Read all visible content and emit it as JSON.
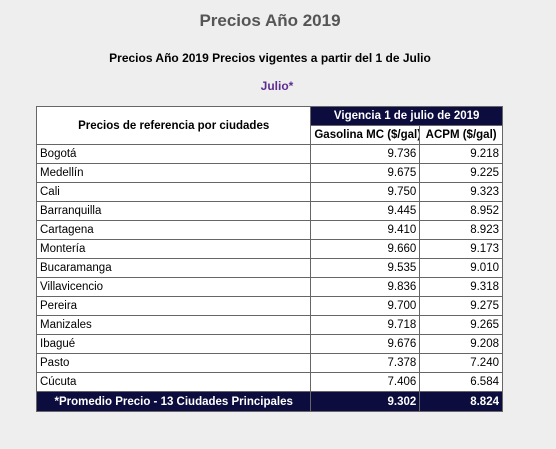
{
  "page": {
    "title": "Precios Año 2019",
    "subtitle": "Precios Año 2019 Precios vigentes a partir del 1 de Julio",
    "month_link": "Julio*"
  },
  "table": {
    "ref_header": "Precios de referencia por ciudades",
    "vigencia_header": "Vigencia 1 de julio de 2019",
    "gas_header": "Gasolina MC ($/gal)",
    "acpm_header": "ACPM ($/gal)",
    "rows": [
      {
        "city": "Bogotá",
        "gas": "9.736",
        "acpm": "9.218"
      },
      {
        "city": "Medellín",
        "gas": "9.675",
        "acpm": "9.225"
      },
      {
        "city": "Cali",
        "gas": "9.750",
        "acpm": "9.323"
      },
      {
        "city": "Barranquilla",
        "gas": "9.445",
        "acpm": "8.952"
      },
      {
        "city": "Cartagena",
        "gas": "9.410",
        "acpm": "8.923"
      },
      {
        "city": "Montería",
        "gas": "9.660",
        "acpm": "9.173"
      },
      {
        "city": "Bucaramanga",
        "gas": "9.535",
        "acpm": "9.010"
      },
      {
        "city": "Villavicencio",
        "gas": "9.836",
        "acpm": "9.318"
      },
      {
        "city": "Pereira",
        "gas": "9.700",
        "acpm": "9.275"
      },
      {
        "city": "Manizales",
        "gas": "9.718",
        "acpm": "9.265"
      },
      {
        "city": "Ibagué",
        "gas": "9.676",
        "acpm": "9.208"
      },
      {
        "city": "Pasto",
        "gas": "7.378",
        "acpm": "7.240"
      },
      {
        "city": "Cúcuta",
        "gas": "7.406",
        "acpm": "6.584"
      }
    ],
    "average": {
      "label": "*Promedio Precio - 13 Ciudades Principales",
      "gas": "9.302",
      "acpm": "8.824"
    }
  },
  "colors": {
    "background": "#eeeeee",
    "header_dark": "#0c0c3e",
    "title_gray": "#555555",
    "month_purple": "#5e2d91"
  }
}
